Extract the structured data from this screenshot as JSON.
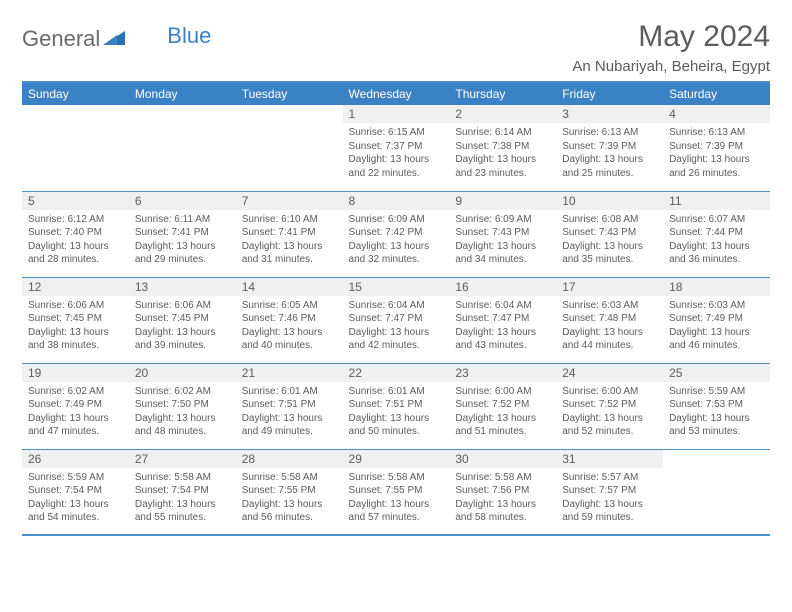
{
  "brand": {
    "part1": "General",
    "part2": "Blue"
  },
  "title": "May 2024",
  "location": "An Nubariyah, Beheira, Egypt",
  "colors": {
    "accent": "#3b82c4",
    "rule": "#4a8fc9",
    "text": "#5c5c5c",
    "shade": "#f0f0f0"
  },
  "weekdays": [
    "Sunday",
    "Monday",
    "Tuesday",
    "Wednesday",
    "Thursday",
    "Friday",
    "Saturday"
  ],
  "weeks": [
    [
      null,
      null,
      null,
      {
        "d": "1",
        "sr": "6:15 AM",
        "ss": "7:37 PM",
        "dlh": "13",
        "dlm": "22"
      },
      {
        "d": "2",
        "sr": "6:14 AM",
        "ss": "7:38 PM",
        "dlh": "13",
        "dlm": "23"
      },
      {
        "d": "3",
        "sr": "6:13 AM",
        "ss": "7:39 PM",
        "dlh": "13",
        "dlm": "25"
      },
      {
        "d": "4",
        "sr": "6:13 AM",
        "ss": "7:39 PM",
        "dlh": "13",
        "dlm": "26"
      }
    ],
    [
      {
        "d": "5",
        "sr": "6:12 AM",
        "ss": "7:40 PM",
        "dlh": "13",
        "dlm": "28"
      },
      {
        "d": "6",
        "sr": "6:11 AM",
        "ss": "7:41 PM",
        "dlh": "13",
        "dlm": "29"
      },
      {
        "d": "7",
        "sr": "6:10 AM",
        "ss": "7:41 PM",
        "dlh": "13",
        "dlm": "31"
      },
      {
        "d": "8",
        "sr": "6:09 AM",
        "ss": "7:42 PM",
        "dlh": "13",
        "dlm": "32"
      },
      {
        "d": "9",
        "sr": "6:09 AM",
        "ss": "7:43 PM",
        "dlh": "13",
        "dlm": "34"
      },
      {
        "d": "10",
        "sr": "6:08 AM",
        "ss": "7:43 PM",
        "dlh": "13",
        "dlm": "35"
      },
      {
        "d": "11",
        "sr": "6:07 AM",
        "ss": "7:44 PM",
        "dlh": "13",
        "dlm": "36"
      }
    ],
    [
      {
        "d": "12",
        "sr": "6:06 AM",
        "ss": "7:45 PM",
        "dlh": "13",
        "dlm": "38"
      },
      {
        "d": "13",
        "sr": "6:06 AM",
        "ss": "7:45 PM",
        "dlh": "13",
        "dlm": "39"
      },
      {
        "d": "14",
        "sr": "6:05 AM",
        "ss": "7:46 PM",
        "dlh": "13",
        "dlm": "40"
      },
      {
        "d": "15",
        "sr": "6:04 AM",
        "ss": "7:47 PM",
        "dlh": "13",
        "dlm": "42"
      },
      {
        "d": "16",
        "sr": "6:04 AM",
        "ss": "7:47 PM",
        "dlh": "13",
        "dlm": "43"
      },
      {
        "d": "17",
        "sr": "6:03 AM",
        "ss": "7:48 PM",
        "dlh": "13",
        "dlm": "44"
      },
      {
        "d": "18",
        "sr": "6:03 AM",
        "ss": "7:49 PM",
        "dlh": "13",
        "dlm": "46"
      }
    ],
    [
      {
        "d": "19",
        "sr": "6:02 AM",
        "ss": "7:49 PM",
        "dlh": "13",
        "dlm": "47"
      },
      {
        "d": "20",
        "sr": "6:02 AM",
        "ss": "7:50 PM",
        "dlh": "13",
        "dlm": "48"
      },
      {
        "d": "21",
        "sr": "6:01 AM",
        "ss": "7:51 PM",
        "dlh": "13",
        "dlm": "49"
      },
      {
        "d": "22",
        "sr": "6:01 AM",
        "ss": "7:51 PM",
        "dlh": "13",
        "dlm": "50"
      },
      {
        "d": "23",
        "sr": "6:00 AM",
        "ss": "7:52 PM",
        "dlh": "13",
        "dlm": "51"
      },
      {
        "d": "24",
        "sr": "6:00 AM",
        "ss": "7:52 PM",
        "dlh": "13",
        "dlm": "52"
      },
      {
        "d": "25",
        "sr": "5:59 AM",
        "ss": "7:53 PM",
        "dlh": "13",
        "dlm": "53"
      }
    ],
    [
      {
        "d": "26",
        "sr": "5:59 AM",
        "ss": "7:54 PM",
        "dlh": "13",
        "dlm": "54"
      },
      {
        "d": "27",
        "sr": "5:58 AM",
        "ss": "7:54 PM",
        "dlh": "13",
        "dlm": "55"
      },
      {
        "d": "28",
        "sr": "5:58 AM",
        "ss": "7:55 PM",
        "dlh": "13",
        "dlm": "56"
      },
      {
        "d": "29",
        "sr": "5:58 AM",
        "ss": "7:55 PM",
        "dlh": "13",
        "dlm": "57"
      },
      {
        "d": "30",
        "sr": "5:58 AM",
        "ss": "7:56 PM",
        "dlh": "13",
        "dlm": "58"
      },
      {
        "d": "31",
        "sr": "5:57 AM",
        "ss": "7:57 PM",
        "dlh": "13",
        "dlm": "59"
      },
      null
    ]
  ],
  "labels": {
    "sunrise": "Sunrise:",
    "sunset": "Sunset:",
    "daylight_pre": "Daylight:",
    "hours_word": "hours",
    "and_word": "and",
    "minutes_word": "minutes."
  }
}
